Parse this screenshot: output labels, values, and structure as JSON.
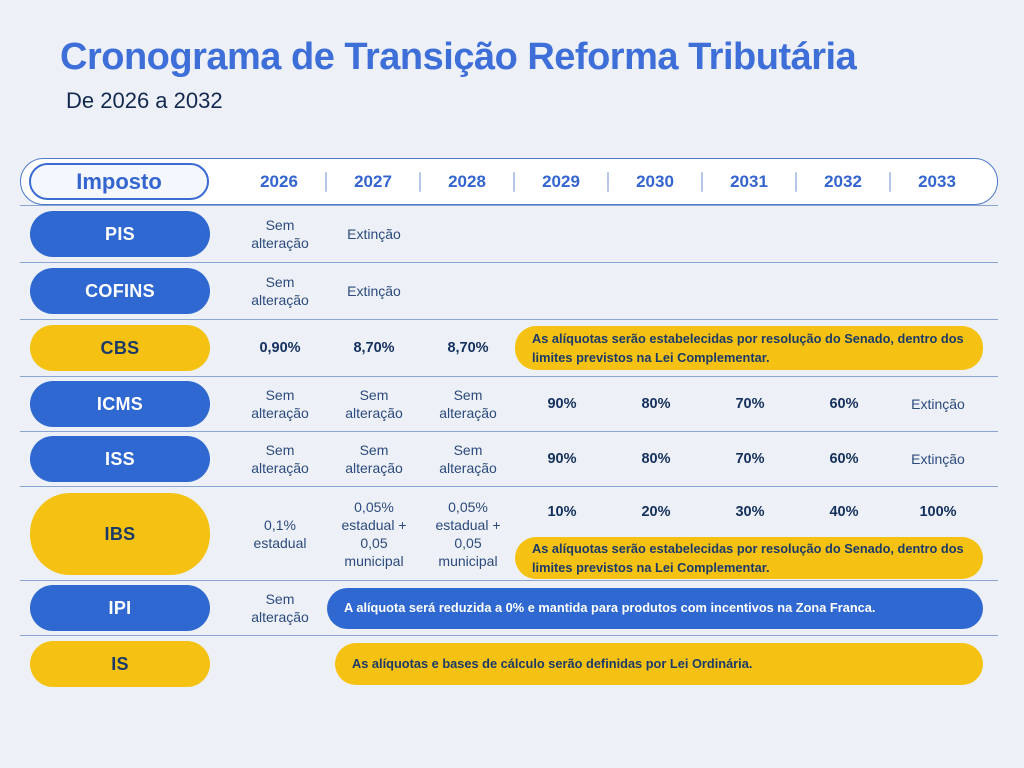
{
  "header": {
    "title": "Cronograma de Transição Reforma Tributária",
    "subtitle": "De 2026 a 2032"
  },
  "colors": {
    "background": "#edf1f7",
    "blue_pill": "#2e68d0",
    "yellow_pill": "#f5c213",
    "title_blue": "#3e6ed8",
    "navy_text": "#14305c",
    "header_border": "#4c79c9"
  },
  "table": {
    "label_header": "Imposto",
    "years": [
      "2026",
      "2027",
      "2028",
      "2029",
      "2030",
      "2031",
      "2032",
      "2033"
    ],
    "rows": {
      "pis": {
        "label": "PIS",
        "y2026": "Sem alteração",
        "y2027": "Extinção"
      },
      "cofins": {
        "label": "COFINS",
        "y2026": "Sem alteração",
        "y2027": "Extinção"
      },
      "cbs": {
        "label": "CBS",
        "y2026": "0,90%",
        "y2027": "8,70%",
        "y2028": "8,70%",
        "note": "As alíquotas serão estabelecidas por resolução do Senado, dentro dos limites previstos na Lei Complementar."
      },
      "icms": {
        "label": "ICMS",
        "y2026": "Sem alteração",
        "y2027": "Sem alteração",
        "y2028": "Sem alteração",
        "y2029": "90%",
        "y2030": "80%",
        "y2031": "70%",
        "y2032": "60%",
        "y2033": "Extinção"
      },
      "iss": {
        "label": "ISS",
        "y2026": "Sem alteração",
        "y2027": "Sem alteração",
        "y2028": "Sem alteração",
        "y2029": "90%",
        "y2030": "80%",
        "y2031": "70%",
        "y2032": "60%",
        "y2033": "Extinção"
      },
      "ibs": {
        "label": "IBS",
        "y2026": "0,1% estadual",
        "y2027": "0,05% estadual + 0,05 municipal",
        "y2028": "0,05% estadual + 0,05 municipal",
        "y2029": "10%",
        "y2030": "20%",
        "y2031": "30%",
        "y2032": "40%",
        "y2033": "100%",
        "note": "As alíquotas serão estabelecidas por resolução do Senado, dentro dos limites previstos na Lei Complementar."
      },
      "ipi": {
        "label": "IPI",
        "y2026": "Sem alteração",
        "note": "A alíquota será reduzida a 0% e mantida para produtos com incentivos na Zona Franca."
      },
      "is": {
        "label": "IS",
        "note": "As alíquotas e bases de cálculo serão definidas por Lei Ordinária."
      }
    }
  },
  "chart_data": {
    "type": "table",
    "title": "Cronograma de Transição Reforma Tributária",
    "subtitle": "De 2026 a 2032",
    "columns": [
      "Imposto",
      "2026",
      "2027",
      "2028",
      "2029",
      "2030",
      "2031",
      "2032",
      "2033"
    ],
    "rows": [
      {
        "imposto": "PIS",
        "2026": "Sem alteração",
        "2027": "Extinção"
      },
      {
        "imposto": "COFINS",
        "2026": "Sem alteração",
        "2027": "Extinção"
      },
      {
        "imposto": "CBS",
        "2026": "0,90%",
        "2027": "8,70%",
        "2028": "8,70%",
        "nota_2029_2033": "As alíquotas serão estabelecidas por resolução do Senado, dentro dos limites previstos na Lei Complementar."
      },
      {
        "imposto": "ICMS",
        "2026": "Sem alteração",
        "2027": "Sem alteração",
        "2028": "Sem alteração",
        "2029": "90%",
        "2030": "80%",
        "2031": "70%",
        "2032": "60%",
        "2033": "Extinção"
      },
      {
        "imposto": "ISS",
        "2026": "Sem alteração",
        "2027": "Sem alteração",
        "2028": "Sem alteração",
        "2029": "90%",
        "2030": "80%",
        "2031": "70%",
        "2032": "60%",
        "2033": "Extinção"
      },
      {
        "imposto": "IBS",
        "2026": "0,1% estadual",
        "2027": "0,05% estadual + 0,05 municipal",
        "2028": "0,05% estadual + 0,05 municipal",
        "2029": "10%",
        "2030": "20%",
        "2031": "30%",
        "2032": "40%",
        "2033": "100%",
        "nota_2029_2033": "As alíquotas serão estabelecidas por resolução do Senado, dentro dos limites previstos na Lei Complementar."
      },
      {
        "imposto": "IPI",
        "2026": "Sem alteração",
        "nota_2027_2033": "A alíquota será reduzida a 0% e mantida para produtos com incentivos na Zona Franca."
      },
      {
        "imposto": "IS",
        "nota_2027_2033": "As alíquotas e bases de cálculo serão definidas por Lei Ordinária."
      }
    ]
  }
}
